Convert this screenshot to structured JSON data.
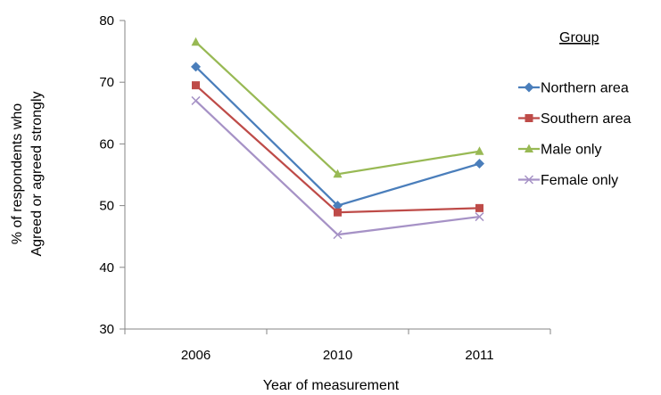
{
  "chart_data": {
    "type": "line",
    "categories": [
      "2006",
      "2010",
      "2011"
    ],
    "xlabel": "Year of measurement",
    "ylabel": [
      "% of respondents who",
      "Agreed or agreed strongly"
    ],
    "ylim": [
      30,
      80
    ],
    "yticks": [
      30,
      40,
      50,
      60,
      70,
      80
    ],
    "grid": false,
    "legend": {
      "title": "Group",
      "position": "right"
    },
    "series": [
      {
        "name": "Northern area",
        "values": [
          72.5,
          50.0,
          56.8
        ],
        "color": "#4A7EBB",
        "marker": "diamond"
      },
      {
        "name": "Southern area",
        "values": [
          69.5,
          48.9,
          49.6
        ],
        "color": "#BE4B48",
        "marker": "square"
      },
      {
        "name": "Male only",
        "values": [
          76.5,
          55.1,
          58.8
        ],
        "color": "#98B954",
        "marker": "triangle"
      },
      {
        "name": "Female only",
        "values": [
          67.0,
          45.3,
          48.2
        ],
        "color": "#A692C6",
        "marker": "x"
      }
    ]
  }
}
